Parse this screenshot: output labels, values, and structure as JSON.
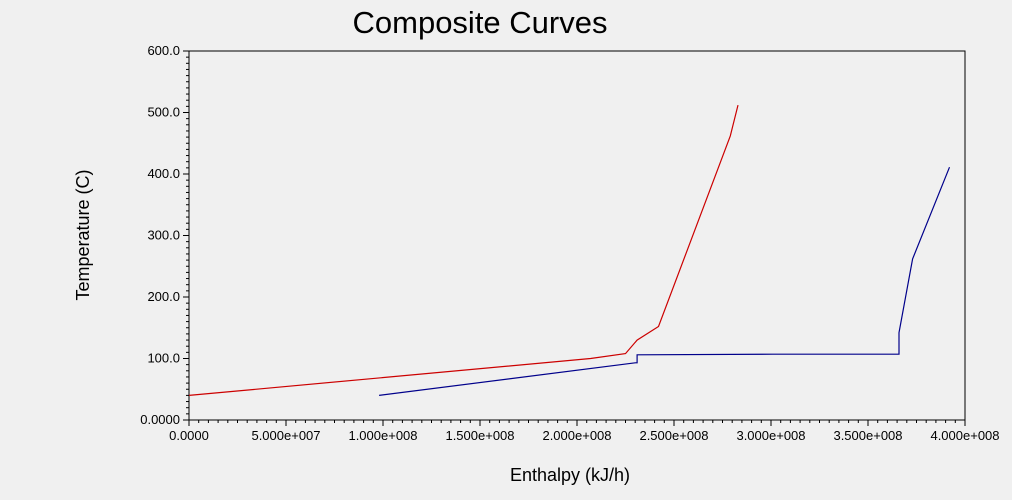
{
  "chart_data": {
    "type": "line",
    "title": "Composite Curves",
    "xlabel": "Enthalpy (kJ/h)",
    "ylabel": "Temperature (C)",
    "xlim": [
      0,
      400000000
    ],
    "ylim": [
      0,
      600
    ],
    "x_ticks": [
      0,
      50000000,
      100000000,
      150000000,
      200000000,
      250000000,
      300000000,
      350000000,
      400000000
    ],
    "x_tick_labels": [
      "0.0000",
      "5.000e+007",
      "1.000e+008",
      "1.500e+008",
      "2.000e+008",
      "2.500e+008",
      "3.000e+008",
      "3.500e+008",
      "4.000e+008"
    ],
    "y_ticks": [
      0,
      100,
      200,
      300,
      400,
      500,
      600
    ],
    "y_tick_labels": [
      "0.0000",
      "100.0",
      "200.0",
      "300.0",
      "400.0",
      "500.0",
      "600.0"
    ],
    "grid": false,
    "legend": "none",
    "series": [
      {
        "color": "#cc0000",
        "points": [
          [
            0,
            40
          ],
          [
            207000000,
            100
          ],
          [
            225000000,
            108
          ],
          [
            231000000,
            130
          ],
          [
            242000000,
            152
          ],
          [
            279000000,
            462
          ],
          [
            283000000,
            512
          ]
        ]
      },
      {
        "color": "#00008b",
        "points": [
          [
            98000000,
            40
          ],
          [
            230000000,
            93
          ],
          [
            231000000,
            93
          ],
          [
            231000000,
            106
          ],
          [
            301000000,
            107
          ],
          [
            366000000,
            107
          ],
          [
            366000000,
            142
          ],
          [
            373000000,
            262
          ],
          [
            392000000,
            411
          ]
        ]
      }
    ]
  }
}
